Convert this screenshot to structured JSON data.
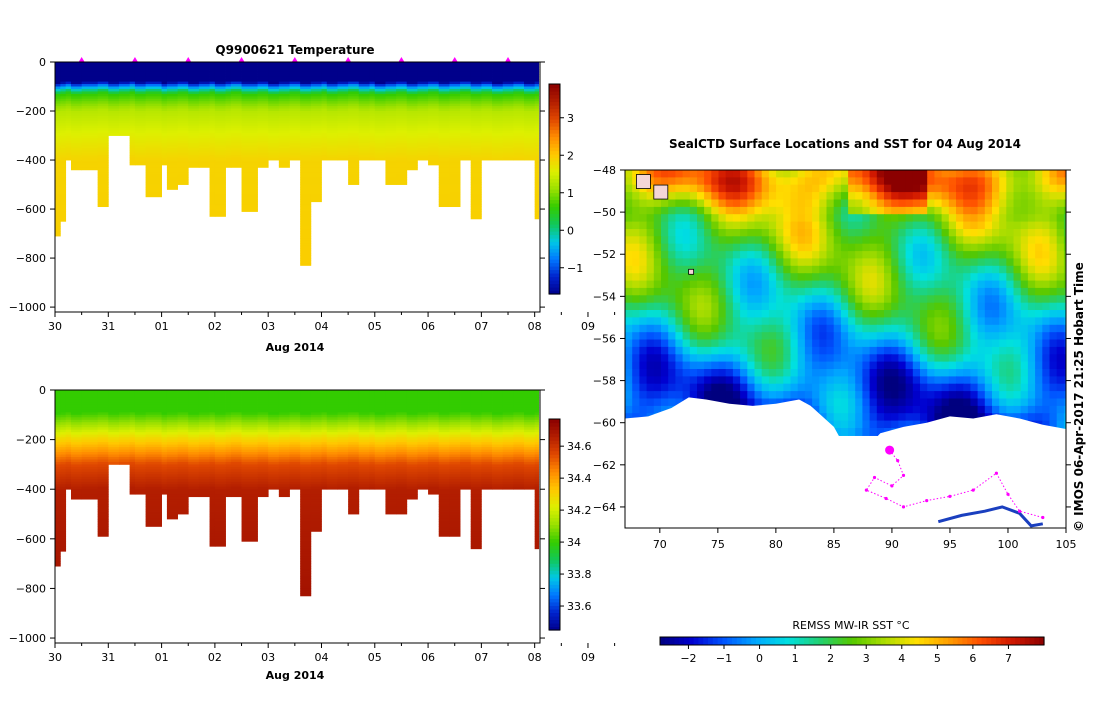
{
  "colors": {
    "profile_cmap": [
      "#00008b",
      "#0022cc",
      "#0077ff",
      "#00c8e6",
      "#11c85a",
      "#33cc00",
      "#99e000",
      "#ddf000",
      "#ffc800",
      "#ff8c00",
      "#e04800",
      "#b31e00",
      "#8b0000"
    ],
    "sst_cmap": [
      "#00007f",
      "#0000d0",
      "#0055ff",
      "#00a8ff",
      "#00e0e0",
      "#22d070",
      "#55c800",
      "#aadd00",
      "#ffe000",
      "#ffa000",
      "#ff5000",
      "#d01800",
      "#8b0000"
    ],
    "track": "#ff00ff"
  },
  "stamp": "© IMOS 06-Apr-2017 21:25 Hobart Time",
  "chart_data": [
    {
      "type": "heatmap",
      "title": "Q9900621  Temperature",
      "xlabel": "Aug 2014",
      "ylabel": "",
      "x_tick_labels": [
        "30",
        "31",
        "01",
        "02",
        "03",
        "04",
        "05",
        "06",
        "07",
        "08",
        "09"
      ],
      "y_tick_labels": [
        "0",
        "−200",
        "−400",
        "−600",
        "−800",
        "−1000"
      ],
      "ylim": [
        -1020,
        0
      ],
      "colorbar": {
        "ticks": [
          "3",
          "2",
          "1",
          "0",
          "−1"
        ],
        "range": [
          -1.7,
          3.9
        ]
      },
      "profile_days": [
        0.0,
        0.1,
        0.2,
        0.3,
        0.5,
        0.8,
        1.0,
        1.2,
        1.4,
        1.5,
        1.7,
        2.0,
        2.1,
        2.3,
        2.5,
        2.7,
        2.9,
        3.0,
        3.2,
        3.3,
        3.5,
        3.8,
        4.0,
        4.2,
        4.4,
        4.6,
        4.8,
        5.0,
        5.1,
        5.3,
        5.5,
        5.7,
        5.9,
        6.0,
        6.2,
        6.4,
        6.6,
        6.8,
        7.0,
        7.2,
        7.4,
        7.6,
        7.8,
        8.0,
        8.2,
        8.4,
        8.6,
        8.8,
        9.0
      ],
      "profile_max_depth": [
        710,
        650,
        400,
        440,
        440,
        590,
        300,
        300,
        420,
        420,
        550,
        420,
        520,
        500,
        430,
        430,
        630,
        630,
        430,
        430,
        610,
        430,
        400,
        430,
        400,
        830,
        570,
        400,
        400,
        400,
        500,
        400,
        400,
        400,
        500,
        500,
        440,
        400,
        420,
        590,
        590,
        400,
        640,
        400,
        400,
        400,
        400,
        400,
        640
      ],
      "temperature_layers": [
        {
          "depth": 80,
          "value": -1.7
        },
        {
          "depth": 100,
          "value": -0.6
        },
        {
          "depth": 130,
          "value": 0.6
        },
        {
          "depth": 200,
          "value": 1.3
        },
        {
          "depth": 400,
          "value": 1.9
        },
        {
          "depth": 1000,
          "value": 2.0
        }
      ],
      "markers": "top of each profile"
    },
    {
      "type": "heatmap",
      "title": "",
      "xlabel": "Aug 2014",
      "ylabel": "",
      "x_tick_labels": [
        "30",
        "31",
        "01",
        "02",
        "03",
        "04",
        "05",
        "06",
        "07",
        "08",
        "09"
      ],
      "y_tick_labels": [
        "0",
        "−200",
        "−400",
        "−600",
        "−800",
        "−1000"
      ],
      "ylim": [
        -1020,
        0
      ],
      "colorbar": {
        "ticks": [
          "34.6",
          "34.4",
          "34.2",
          "34",
          "33.8",
          "33.6"
        ],
        "range": [
          33.45,
          34.77
        ]
      },
      "salinity_layers": [
        {
          "depth": 90,
          "value": 34.0
        },
        {
          "depth": 130,
          "value": 34.1
        },
        {
          "depth": 200,
          "value": 34.3
        },
        {
          "depth": 300,
          "value": 34.55
        },
        {
          "depth": 400,
          "value": 34.66
        },
        {
          "depth": 1000,
          "value": 34.72
        }
      ]
    },
    {
      "type": "heatmap",
      "title": "SealCTD Surface Locations and SST for 04 Aug 2014",
      "xlabel": "",
      "ylabel": "",
      "x_tick_labels": [
        "70",
        "75",
        "80",
        "85",
        "90",
        "95",
        "100",
        "105"
      ],
      "y_tick_labels": [
        "−48",
        "−50",
        "−52",
        "−54",
        "−56",
        "−58",
        "−60",
        "−62",
        "−64"
      ],
      "xlim": [
        67,
        105
      ],
      "ylim": [
        -65,
        -48
      ],
      "colorbar": {
        "label": "REMSS MW-IR SST °C",
        "ticks": [
          "−2",
          "−1",
          "0",
          "1",
          "2",
          "3",
          "4",
          "5",
          "6",
          "7"
        ],
        "range": [
          -2.8,
          8.0
        ]
      },
      "sst_by_latitude": [
        {
          "lat": -48.5,
          "value": 5.4
        },
        {
          "lat": -50,
          "value": 3.2
        },
        {
          "lat": -52,
          "value": 2.4
        },
        {
          "lat": -54,
          "value": 1.6
        },
        {
          "lat": -56,
          "value": 0.6
        },
        {
          "lat": -58,
          "value": -0.9
        },
        {
          "lat": -59.5,
          "value": -1.6
        }
      ],
      "ice_edge": [
        [
          67,
          -59.8
        ],
        [
          69,
          -59.7
        ],
        [
          71,
          -59.3
        ],
        [
          72.5,
          -58.8
        ],
        [
          74,
          -58.9
        ],
        [
          76,
          -59.1
        ],
        [
          78,
          -59.2
        ],
        [
          80,
          -59.1
        ],
        [
          82,
          -58.9
        ],
        [
          83,
          -59.2
        ],
        [
          85,
          -60.2
        ],
        [
          86,
          -61.2
        ],
        [
          87,
          -61.5
        ],
        [
          88,
          -61.1
        ],
        [
          89,
          -60.5
        ],
        [
          91,
          -60.2
        ],
        [
          93,
          -60.0
        ],
        [
          95,
          -59.7
        ],
        [
          97,
          -59.8
        ],
        [
          99,
          -59.6
        ],
        [
          101,
          -59.8
        ],
        [
          103,
          -60.1
        ],
        [
          105,
          -60.3
        ]
      ],
      "track_points": [
        [
          89.8,
          -61.3
        ],
        [
          90.5,
          -61.8
        ],
        [
          91,
          -62.5
        ],
        [
          90,
          -63.0
        ],
        [
          88.5,
          -62.6
        ],
        [
          87.8,
          -63.2
        ],
        [
          89.5,
          -63.6
        ],
        [
          91,
          -64.0
        ],
        [
          93,
          -63.7
        ],
        [
          95,
          -63.5
        ],
        [
          97,
          -63.2
        ],
        [
          99,
          -62.4
        ],
        [
          100,
          -63.4
        ],
        [
          101,
          -64.2
        ],
        [
          103,
          -64.5
        ]
      ],
      "island_lonlat": [
        [
          68.5,
          -48.5
        ],
        [
          70,
          -49.0
        ],
        [
          73,
          -53.0
        ]
      ],
      "coast_lonlat": [
        [
          94,
          -64.7
        ],
        [
          96,
          -64.4
        ],
        [
          98,
          -64.2
        ],
        [
          99.5,
          -64.0
        ],
        [
          101,
          -64.3
        ],
        [
          102,
          -64.9
        ],
        [
          103,
          -64.8
        ]
      ]
    }
  ]
}
